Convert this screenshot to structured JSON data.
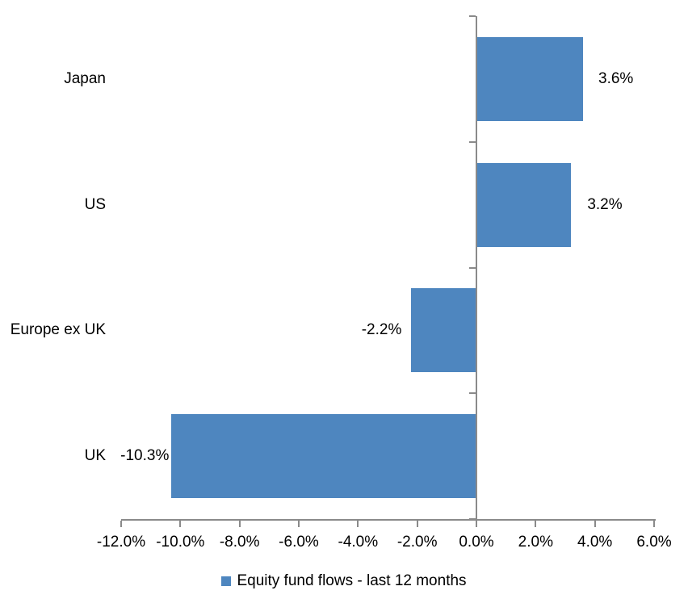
{
  "chart_data": {
    "type": "bar",
    "orientation": "horizontal",
    "title": "",
    "categories": [
      "Japan",
      "US",
      "Europe ex UK",
      "UK"
    ],
    "series": [
      {
        "name": "Equity fund flows - last 12 months",
        "values": [
          3.6,
          3.2,
          -2.2,
          -10.3
        ],
        "data_labels": [
          "3.6%",
          "3.2%",
          "-2.2%",
          "-10.3%"
        ]
      }
    ],
    "xlabel": "",
    "ylabel": "",
    "xlim": [
      -12,
      6
    ],
    "x_tick_values": [
      -12,
      -10,
      -8,
      -6,
      -4,
      -2,
      0,
      2,
      4,
      6
    ],
    "x_tick_labels": [
      "-12.0%",
      "-10.0%",
      "-8.0%",
      "-6.0%",
      "-4.0%",
      "-2.0%",
      "0.0%",
      "2.0%",
      "4.0%",
      "6.0%"
    ],
    "grid": false,
    "legend": {
      "position": "bottom",
      "label": "Equity fund flows - last 12 months"
    },
    "colors": {
      "bar": "#4e86bf",
      "axis": "#8a8a8a",
      "text": "#000000",
      "background": "#ffffff"
    }
  }
}
